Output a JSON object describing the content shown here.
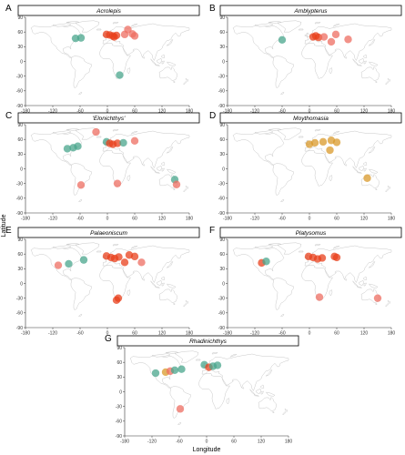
{
  "colors": {
    "red": "#e8401c",
    "salmon": "#ee6e62",
    "teal": "#4aa58c",
    "gold": "#d99a2b",
    "land": "#c4c4c4",
    "panel_border": "#000000"
  },
  "chart_data": [
    {
      "type": "scatter",
      "letter": "A",
      "title": "Acrolepis",
      "xlabel": "",
      "ylabel": "",
      "xlim": [
        -180,
        180
      ],
      "ylim": [
        -90,
        90
      ],
      "xticks": [
        -180,
        -120,
        -60,
        0,
        60,
        120,
        180
      ],
      "yticks": [
        90,
        60,
        30,
        0,
        -30,
        -60,
        -90
      ],
      "points": [
        {
          "x": -70,
          "y": 47,
          "color": "teal"
        },
        {
          "x": -58,
          "y": 48,
          "color": "teal"
        },
        {
          "x": -2,
          "y": 55,
          "color": "red"
        },
        {
          "x": 5,
          "y": 54,
          "color": "red"
        },
        {
          "x": 12,
          "y": 52,
          "color": "red"
        },
        {
          "x": 20,
          "y": 53,
          "color": "red"
        },
        {
          "x": 15,
          "y": 50,
          "color": "red"
        },
        {
          "x": 38,
          "y": 55,
          "color": "salmon"
        },
        {
          "x": 55,
          "y": 56,
          "color": "salmon"
        },
        {
          "x": 60,
          "y": 52,
          "color": "salmon"
        },
        {
          "x": 45,
          "y": 65,
          "color": "salmon"
        },
        {
          "x": 27,
          "y": -28,
          "color": "teal"
        }
      ]
    },
    {
      "type": "scatter",
      "letter": "B",
      "title": "Amblypterus",
      "xlabel": "",
      "ylabel": "",
      "xlim": [
        -180,
        180
      ],
      "ylim": [
        -90,
        90
      ],
      "xticks": [
        -180,
        -120,
        -60,
        0,
        60,
        120,
        180
      ],
      "yticks": [
        90,
        60,
        30,
        0,
        -30,
        -60,
        -90
      ],
      "points": [
        {
          "x": -60,
          "y": 44,
          "color": "teal"
        },
        {
          "x": 8,
          "y": 50,
          "color": "red"
        },
        {
          "x": 14,
          "y": 52,
          "color": "red"
        },
        {
          "x": 20,
          "y": 49,
          "color": "red"
        },
        {
          "x": 32,
          "y": 50,
          "color": "salmon"
        },
        {
          "x": 58,
          "y": 55,
          "color": "salmon"
        },
        {
          "x": 48,
          "y": 40,
          "color": "salmon"
        },
        {
          "x": 85,
          "y": 45,
          "color": "salmon"
        }
      ]
    },
    {
      "type": "scatter",
      "letter": "C",
      "title": "'Elonichthys'",
      "xlabel": "",
      "ylabel": "",
      "xlim": [
        -180,
        180
      ],
      "ylim": [
        -90,
        90
      ],
      "xticks": [
        -180,
        -120,
        -60,
        0,
        60,
        120,
        180
      ],
      "yticks": [
        90,
        60,
        30,
        0,
        -30,
        -60,
        -90
      ],
      "points": [
        {
          "x": -88,
          "y": 41,
          "color": "teal"
        },
        {
          "x": -75,
          "y": 43,
          "color": "teal"
        },
        {
          "x": -65,
          "y": 46,
          "color": "teal"
        },
        {
          "x": -25,
          "y": 75,
          "color": "salmon"
        },
        {
          "x": -2,
          "y": 55,
          "color": "teal"
        },
        {
          "x": 5,
          "y": 52,
          "color": "red"
        },
        {
          "x": 12,
          "y": 50,
          "color": "red"
        },
        {
          "x": 22,
          "y": 52,
          "color": "red"
        },
        {
          "x": 35,
          "y": 53,
          "color": "teal"
        },
        {
          "x": 60,
          "y": 57,
          "color": "salmon"
        },
        {
          "x": -58,
          "y": -33,
          "color": "salmon"
        },
        {
          "x": 22,
          "y": -30,
          "color": "salmon"
        },
        {
          "x": 148,
          "y": -22,
          "color": "teal"
        },
        {
          "x": 152,
          "y": -32,
          "color": "salmon"
        }
      ]
    },
    {
      "type": "scatter",
      "letter": "D",
      "title": "Moythomasia",
      "xlabel": "",
      "ylabel": "",
      "xlim": [
        -180,
        180
      ],
      "ylim": [
        -90,
        90
      ],
      "xticks": [
        -180,
        -120,
        -60,
        0,
        60,
        120,
        180
      ],
      "yticks": [
        90,
        60,
        30,
        0,
        -30,
        -60,
        -90
      ],
      "points": [
        {
          "x": 0,
          "y": 50,
          "color": "gold"
        },
        {
          "x": 12,
          "y": 53,
          "color": "gold"
        },
        {
          "x": 30,
          "y": 55,
          "color": "gold"
        },
        {
          "x": 48,
          "y": 58,
          "color": "gold"
        },
        {
          "x": 60,
          "y": 54,
          "color": "gold"
        },
        {
          "x": 45,
          "y": 38,
          "color": "gold"
        },
        {
          "x": 127,
          "y": -19,
          "color": "gold"
        }
      ]
    },
    {
      "type": "scatter",
      "letter": "E",
      "title": "Palaeoniscum",
      "xlabel": "",
      "ylabel": "",
      "xlim": [
        -180,
        180
      ],
      "ylim": [
        -90,
        90
      ],
      "xticks": [
        -180,
        -120,
        -60,
        0,
        60,
        120,
        180
      ],
      "yticks": [
        90,
        60,
        30,
        0,
        -30,
        -60,
        -90
      ],
      "points": [
        {
          "x": -108,
          "y": 37,
          "color": "salmon"
        },
        {
          "x": -85,
          "y": 40,
          "color": "teal"
        },
        {
          "x": -52,
          "y": 48,
          "color": "teal"
        },
        {
          "x": -2,
          "y": 56,
          "color": "red"
        },
        {
          "x": 8,
          "y": 53,
          "color": "red"
        },
        {
          "x": 16,
          "y": 51,
          "color": "red"
        },
        {
          "x": 25,
          "y": 54,
          "color": "red"
        },
        {
          "x": 48,
          "y": 58,
          "color": "red"
        },
        {
          "x": 60,
          "y": 55,
          "color": "red"
        },
        {
          "x": 38,
          "y": 43,
          "color": "red"
        },
        {
          "x": 75,
          "y": 43,
          "color": "salmon"
        },
        {
          "x": 24,
          "y": -30,
          "color": "red"
        },
        {
          "x": 20,
          "y": -34,
          "color": "red"
        }
      ]
    },
    {
      "type": "scatter",
      "letter": "F",
      "title": "Platysomus",
      "xlabel": "",
      "ylabel": "",
      "xlim": [
        -180,
        180
      ],
      "ylim": [
        -90,
        90
      ],
      "xticks": [
        -180,
        -120,
        -60,
        0,
        60,
        120,
        180
      ],
      "yticks": [
        90,
        60,
        30,
        0,
        -30,
        -60,
        -90
      ],
      "points": [
        {
          "x": -105,
          "y": 42,
          "color": "red"
        },
        {
          "x": -95,
          "y": 45,
          "color": "teal"
        },
        {
          "x": -2,
          "y": 55,
          "color": "red"
        },
        {
          "x": 8,
          "y": 53,
          "color": "red"
        },
        {
          "x": 18,
          "y": 50,
          "color": "red"
        },
        {
          "x": 28,
          "y": 52,
          "color": "red"
        },
        {
          "x": 55,
          "y": 55,
          "color": "red"
        },
        {
          "x": 60,
          "y": 53,
          "color": "red"
        },
        {
          "x": 22,
          "y": -28,
          "color": "salmon"
        },
        {
          "x": 150,
          "y": -30,
          "color": "salmon"
        }
      ]
    },
    {
      "type": "scatter",
      "letter": "G",
      "title": "Rhadinichthys",
      "xlabel": "Longitude",
      "ylabel": "",
      "xlim": [
        -180,
        180
      ],
      "ylim": [
        -90,
        90
      ],
      "xticks": [
        -180,
        -120,
        -60,
        0,
        60,
        120,
        180
      ],
      "yticks": [
        90,
        60,
        30,
        0,
        -30,
        -60,
        -90
      ],
      "points": [
        {
          "x": -112,
          "y": 38,
          "color": "teal"
        },
        {
          "x": -90,
          "y": 40,
          "color": "gold"
        },
        {
          "x": -80,
          "y": 42,
          "color": "salmon"
        },
        {
          "x": -70,
          "y": 44,
          "color": "teal"
        },
        {
          "x": -55,
          "y": 46,
          "color": "teal"
        },
        {
          "x": -5,
          "y": 55,
          "color": "teal"
        },
        {
          "x": 5,
          "y": 50,
          "color": "red"
        },
        {
          "x": 14,
          "y": 52,
          "color": "teal"
        },
        {
          "x": 24,
          "y": 54,
          "color": "teal"
        },
        {
          "x": -58,
          "y": -35,
          "color": "salmon"
        }
      ]
    }
  ],
  "shared_ylabel": "Latitude"
}
